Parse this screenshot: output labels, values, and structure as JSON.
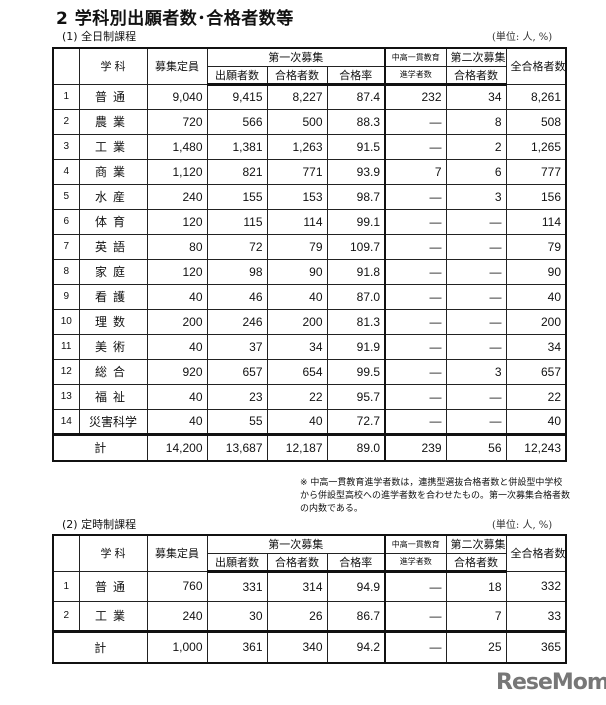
{
  "title": "2 学科別出願者数･合格者数等",
  "unit_label": "(単位: 人, %)",
  "headers": {
    "subject": "学 科",
    "capacity": "募集定員",
    "first_round": "第一次募集",
    "applicants": "出願者数",
    "passed": "合格者数",
    "pass_rate": "合格率",
    "integrated_top": "中高一貫教育",
    "integrated_bottom": "進学者数",
    "second_top": "第二次募集",
    "second_bottom": "合格者数",
    "total_passed": "全合格者数"
  },
  "fulltime": {
    "title": "(1) 全日制課程",
    "rows": [
      {
        "no": "1",
        "name": "普通",
        "capacity": "9,040",
        "applicants": "9,415",
        "passed": "8,227",
        "rate": "87.4",
        "integrated": "232",
        "second": "34",
        "total": "8,261"
      },
      {
        "no": "2",
        "name": "農業",
        "capacity": "720",
        "applicants": "566",
        "passed": "500",
        "rate": "88.3",
        "integrated": "—",
        "second": "8",
        "total": "508"
      },
      {
        "no": "3",
        "name": "工業",
        "capacity": "1,480",
        "applicants": "1,381",
        "passed": "1,263",
        "rate": "91.5",
        "integrated": "—",
        "second": "2",
        "total": "1,265"
      },
      {
        "no": "4",
        "name": "商業",
        "capacity": "1,120",
        "applicants": "821",
        "passed": "771",
        "rate": "93.9",
        "integrated": "7",
        "second": "6",
        "total": "777"
      },
      {
        "no": "5",
        "name": "水産",
        "capacity": "240",
        "applicants": "155",
        "passed": "153",
        "rate": "98.7",
        "integrated": "—",
        "second": "3",
        "total": "156"
      },
      {
        "no": "6",
        "name": "体育",
        "capacity": "120",
        "applicants": "115",
        "passed": "114",
        "rate": "99.1",
        "integrated": "—",
        "second": "—",
        "total": "114"
      },
      {
        "no": "7",
        "name": "英語",
        "capacity": "80",
        "applicants": "72",
        "passed": "79",
        "rate": "109.7",
        "integrated": "—",
        "second": "—",
        "total": "79"
      },
      {
        "no": "8",
        "name": "家庭",
        "capacity": "120",
        "applicants": "98",
        "passed": "90",
        "rate": "91.8",
        "integrated": "—",
        "second": "—",
        "total": "90"
      },
      {
        "no": "9",
        "name": "看護",
        "capacity": "40",
        "applicants": "46",
        "passed": "40",
        "rate": "87.0",
        "integrated": "—",
        "second": "—",
        "total": "40"
      },
      {
        "no": "10",
        "name": "理数",
        "capacity": "200",
        "applicants": "246",
        "passed": "200",
        "rate": "81.3",
        "integrated": "—",
        "second": "—",
        "total": "200"
      },
      {
        "no": "11",
        "name": "美術",
        "capacity": "40",
        "applicants": "37",
        "passed": "34",
        "rate": "91.9",
        "integrated": "—",
        "second": "—",
        "total": "34"
      },
      {
        "no": "12",
        "name": "総合",
        "capacity": "920",
        "applicants": "657",
        "passed": "654",
        "rate": "99.5",
        "integrated": "—",
        "second": "3",
        "total": "657"
      },
      {
        "no": "13",
        "name": "福祉",
        "capacity": "40",
        "applicants": "23",
        "passed": "22",
        "rate": "95.7",
        "integrated": "—",
        "second": "—",
        "total": "22"
      },
      {
        "no": "14",
        "name": "災害科学",
        "capacity": "40",
        "applicants": "55",
        "passed": "40",
        "rate": "72.7",
        "integrated": "—",
        "second": "—",
        "total": "40"
      }
    ],
    "total": {
      "name": "計",
      "capacity": "14,200",
      "applicants": "13,687",
      "passed": "12,187",
      "rate": "89.0",
      "integrated": "239",
      "second": "56",
      "total": "12,243"
    },
    "note": "※ 中高一貫教育進学者数は，連携型選抜合格者数と併設型中学校から併設型高校への進学者数を合わせたもの。第一次募集合格者数の内数である。"
  },
  "parttime": {
    "title": "(2) 定時制課程",
    "rows": [
      {
        "no": "1",
        "name": "普通",
        "capacity": "760",
        "applicants": "331",
        "passed": "314",
        "rate": "94.9",
        "integrated": "—",
        "second": "18",
        "total": "332"
      },
      {
        "no": "2",
        "name": "工業",
        "capacity": "240",
        "applicants": "30",
        "passed": "26",
        "rate": "86.7",
        "integrated": "—",
        "second": "7",
        "total": "33"
      }
    ],
    "total": {
      "name": "計",
      "capacity": "1,000",
      "applicants": "361",
      "passed": "340",
      "rate": "94.2",
      "integrated": "—",
      "second": "25",
      "total": "365"
    }
  },
  "logo": "ReseMom"
}
